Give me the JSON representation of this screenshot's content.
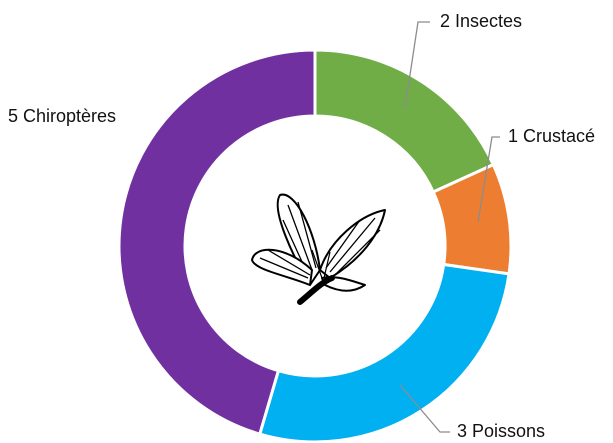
{
  "chart_data": {
    "type": "donut",
    "categories": [
      "Insectes",
      "Crustacé",
      "Poissons",
      "Chiroptères"
    ],
    "values": [
      2,
      1,
      3,
      5
    ],
    "colors": [
      "#70ad47",
      "#ed7d31",
      "#00b0f0",
      "#7030a0"
    ]
  }
}
